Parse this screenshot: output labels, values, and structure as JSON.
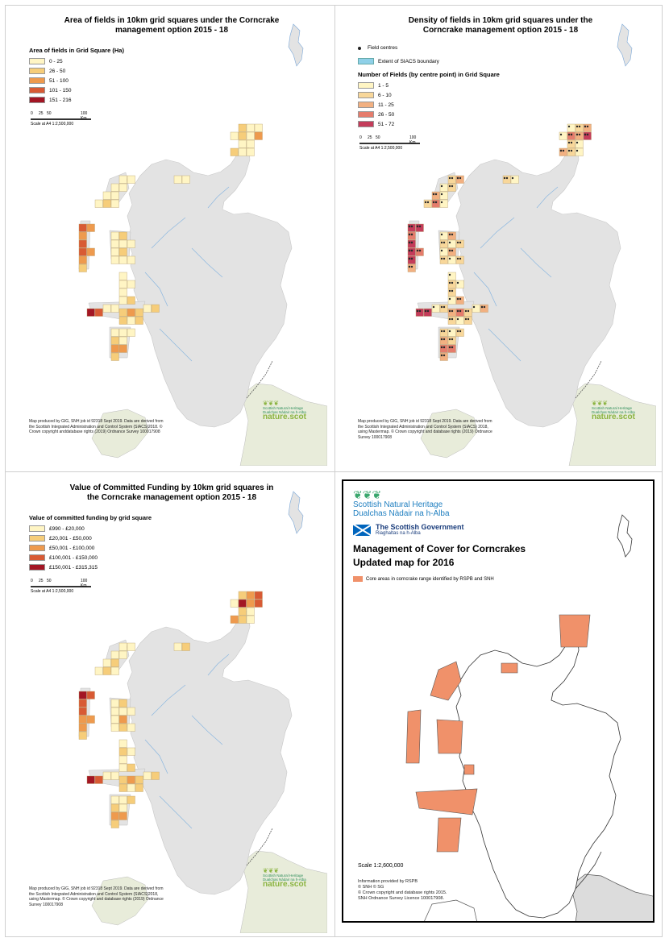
{
  "panels": [
    {
      "title": "Area of fields in 10km grid squares under the Corncrake management option 2015 - 18",
      "legend_title": "Area of fields in Grid Square (Ha)",
      "legend": [
        {
          "label": "0 - 25",
          "color": "#fff5c4"
        },
        {
          "label": "26 - 50",
          "color": "#f6cd7a"
        },
        {
          "label": "51 - 100",
          "color": "#ee9a4e"
        },
        {
          "label": "101 - 150",
          "color": "#d85a34"
        },
        {
          "label": "151 - 216",
          "color": "#a31624"
        }
      ],
      "scale_ticks": [
        "0",
        "25",
        "50",
        "100 Km"
      ],
      "scale_note": "Scale at A4 1:2,500,000",
      "credit": "Map produced by GIG, SNH job id 92318 Sept 2019. Data are derived from the Scottish Integrated Administration and Control System (SIACS)2018. © Crown copyright anddatabase rights (2019) Ordnance Survey 100017908"
    },
    {
      "title": "Density of fields in 10km grid squares under the Corncrake management option 2015 - 18",
      "point_legend": "Field centres",
      "boundary_legend": "Extent of SIACS boundary",
      "legend_title": "Number of Fields (by centre point) in Grid Square",
      "legend": [
        {
          "label": "1 - 5",
          "color": "#fff5c4"
        },
        {
          "label": "6 - 10",
          "color": "#f8d79a"
        },
        {
          "label": "11 - 25",
          "color": "#f2b081"
        },
        {
          "label": "26 - 50",
          "color": "#e57c6c"
        },
        {
          "label": "51 - 72",
          "color": "#c43c5a"
        }
      ],
      "scale_ticks": [
        "0",
        "25",
        "50",
        "100 Km"
      ],
      "scale_note": "Scale at A4 1:2,500,000",
      "credit": "Map produced by GIG, SNH job id 92318 Sept 2019. Data are derived from the Scottish Integrated Administration and Control System (SIACS) 2018, using Mastermap. © Crown copyright and database rights (2019) Ordnance Survey 100017908"
    },
    {
      "title": "Value of Committed Funding by 10km grid squares in the Corncrake management option 2015 - 18",
      "legend_title": "Value of committed funding by grid square",
      "legend": [
        {
          "label": "£990 - £20,000",
          "color": "#fff5c4"
        },
        {
          "label": "£20,001 - £50,000",
          "color": "#f6cd7a"
        },
        {
          "label": "£50,001 - £100,000",
          "color": "#ee9a4e"
        },
        {
          "label": "£100,001 - £150,000",
          "color": "#d85a34"
        },
        {
          "label": "£150,001 - £315,315",
          "color": "#a31624"
        }
      ],
      "scale_ticks": [
        "0",
        "25",
        "50",
        "100 Km"
      ],
      "scale_note": "Scale at A4 1:2,500,000",
      "credit": "Map produced by GIG, SNH job id 92318 Sept 2019. Data are derived from the Scottish Integrated Administration and Control System (SIACS)2018, using Mastermap. © Crown copyright and database rights (2019) Ordnance Survey 100017908"
    }
  ],
  "snh_logo": {
    "line1": "Scottish Natural Heritage",
    "line2": "Dualchas Nàdair na h-Alba",
    "brand": "nature.scot"
  },
  "panel4": {
    "org1": "Scottish Natural Heritage",
    "org2": "Dualchas Nàdair na h-Alba",
    "gov1": "The Scottish Government",
    "gov2": "Riaghaltas na h-Alba",
    "title1": "Management of Cover for Corncrakes",
    "title2": "Updated map for 2016",
    "legend": "Core areas in corncrake range identified by RSPB and SNH",
    "legend_color": "#f0916a",
    "scale": "Scale   1:2,600,000",
    "credit_lines": [
      "Information provided by RSPB",
      "© SNH © SG",
      "© Crown copyright and database rights 2015.",
      "SNH Ordnance Survey Licence 100017908."
    ]
  }
}
